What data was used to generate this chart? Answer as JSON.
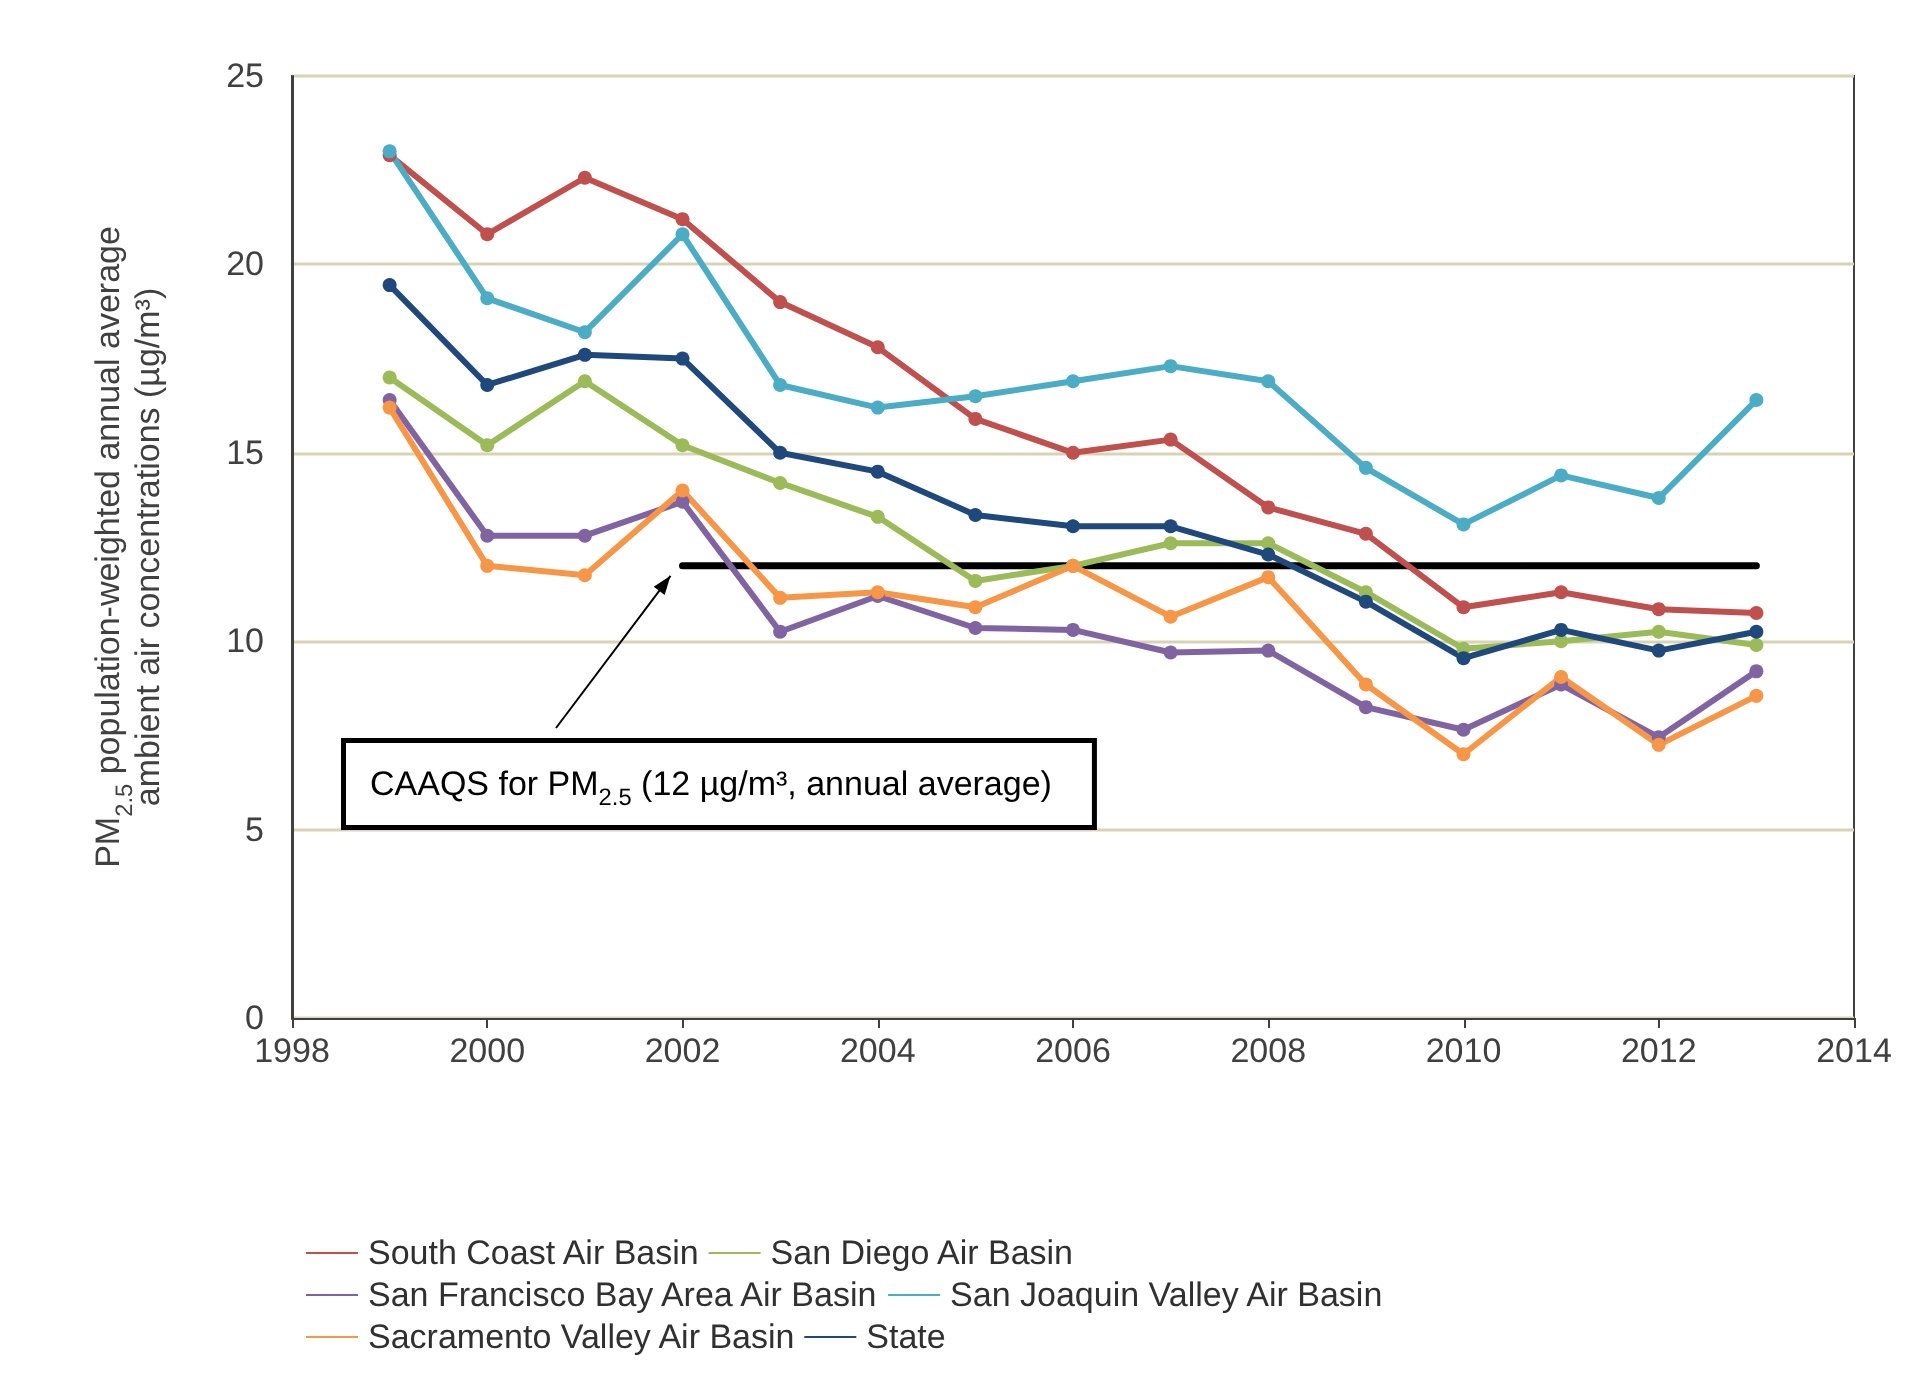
{
  "chart_data": {
    "type": "line",
    "ylabel": "PM$_{2.5}$ population-weighted annual average ambient air concentrations (µg/m³)",
    "x": [
      1999,
      2000,
      2001,
      2002,
      2003,
      2004,
      2005,
      2006,
      2007,
      2008,
      2009,
      2010,
      2011,
      2012,
      2013
    ],
    "xlim": [
      1998,
      2014
    ],
    "xticks": [
      1998,
      2000,
      2002,
      2004,
      2006,
      2008,
      2010,
      2012,
      2014
    ],
    "ylim": [
      0,
      25
    ],
    "yticks": [
      0,
      5,
      10,
      15,
      20,
      25
    ],
    "grid": "y",
    "legend": "bottom",
    "marker": "circle",
    "line_style": "solid",
    "series": [
      {
        "name": "South Coast Air Basin",
        "color": "#c0504d",
        "values": [
          22.9,
          20.8,
          22.3,
          21.2,
          19.0,
          17.8,
          15.9,
          15.0,
          15.35,
          13.55,
          12.85,
          10.9,
          11.3,
          10.85,
          10.75
        ]
      },
      {
        "name": "San Diego Air Basin",
        "color": "#9bbb59",
        "values": [
          17.0,
          15.2,
          16.9,
          15.2,
          14.2,
          13.3,
          11.6,
          12.0,
          12.6,
          12.6,
          11.3,
          9.8,
          10.0,
          10.25,
          9.9
        ]
      },
      {
        "name": "San Francisco Bay Area Air Basin",
        "color": "#8064a2",
        "values": [
          16.4,
          12.8,
          12.8,
          13.7,
          10.25,
          11.2,
          10.35,
          10.3,
          9.7,
          9.75,
          8.25,
          7.65,
          8.85,
          7.45,
          9.2
        ]
      },
      {
        "name": "San Joaquin Valley Air Basin",
        "color": "#4bacc6",
        "values": [
          23.0,
          19.1,
          18.2,
          20.8,
          16.8,
          16.2,
          16.5,
          16.9,
          17.3,
          16.9,
          14.6,
          13.1,
          14.4,
          13.8,
          16.4
        ]
      },
      {
        "name": "Sacramento Valley Air Basin",
        "color": "#f79646",
        "values": [
          16.2,
          12.0,
          11.75,
          14.0,
          11.15,
          11.3,
          10.9,
          12.0,
          10.65,
          11.7,
          8.85,
          7.0,
          9.05,
          7.25,
          8.55
        ]
      },
      {
        "name": "State",
        "color": "#1f497d",
        "values": [
          19.45,
          16.8,
          17.6,
          17.5,
          15.0,
          14.5,
          13.35,
          13.05,
          13.05,
          12.3,
          11.05,
          9.55,
          10.3,
          9.75,
          10.25
        ]
      },
      {
        "type": "line",
        "color": "#000000",
        "marker": "none",
        "x": [
          2002,
          2013
        ],
        "values": [
          12,
          12
        ]
      }
    ],
    "annotations": [
      {
        "text": "CAAQS for PM$_{2.5}$ (12 µg/m³, annual average)",
        "x": 2002,
        "y": 12
      }
    ]
  }
}
